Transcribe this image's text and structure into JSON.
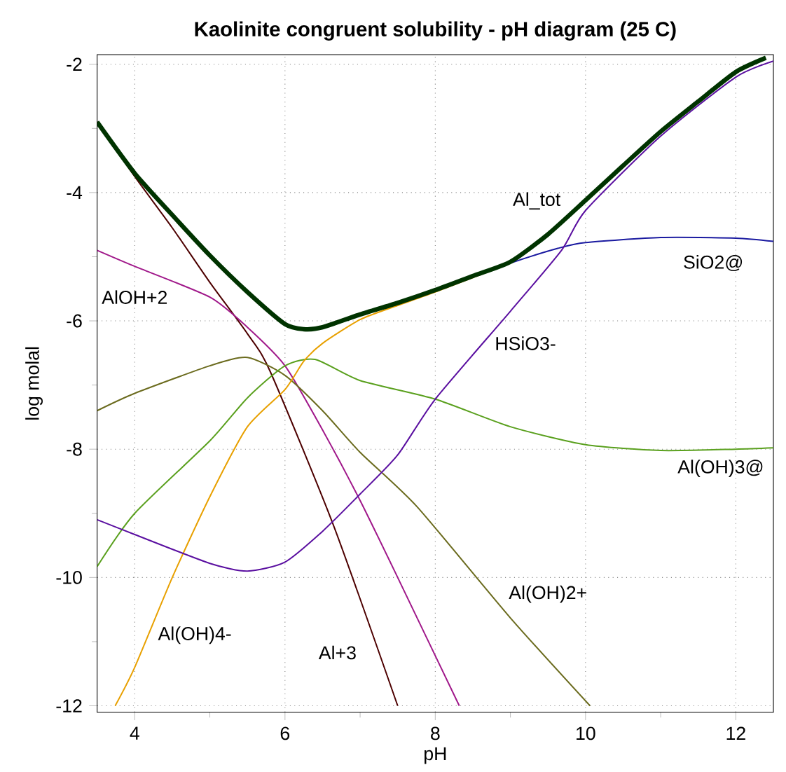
{
  "chart_data": {
    "type": "line",
    "title": "Kaolinite congruent solubility - pH diagram (25 C)",
    "xlabel": "pH",
    "ylabel": "log molal",
    "xlim": [
      3.5,
      12.5
    ],
    "xticks": [
      4,
      6,
      8,
      10,
      12
    ],
    "ylim": [
      -12.1,
      -1.85
    ],
    "yticks": [
      -12,
      -10,
      -8,
      -6,
      -4,
      -2
    ],
    "grid": true,
    "legend": false,
    "marker": "none",
    "line_style": "solid",
    "series": [
      {
        "name": "Al_tot",
        "color": "#003300",
        "x": [
          3.5,
          4,
          4.5,
          5,
          5.5,
          6,
          6.25,
          6.5,
          7,
          7.5,
          8,
          8.5,
          9,
          9.5,
          10,
          10.5,
          11,
          11.5,
          12,
          12.4
        ],
        "values": [
          -2.9,
          -3.7,
          -4.35,
          -4.98,
          -5.55,
          -6.05,
          -6.13,
          -6.1,
          -5.9,
          -5.72,
          -5.52,
          -5.3,
          -5.08,
          -4.65,
          -4.12,
          -3.58,
          -3.05,
          -2.58,
          -2.12,
          -1.9
        ]
      },
      {
        "name": "Al+3",
        "color": "#4d0000",
        "x": [
          3.5,
          4,
          4.5,
          5,
          5.5,
          5.8,
          6.64,
          7.5
        ],
        "values": [
          -2.9,
          -3.75,
          -4.55,
          -5.4,
          -6.2,
          -6.78,
          -9.17,
          -12
        ]
      },
      {
        "name": "AlOH+2",
        "color": "#a0188a",
        "x": [
          3.5,
          4,
          5,
          5.5,
          6,
          6.5,
          7,
          7.5,
          8.32
        ],
        "values": [
          -4.9,
          -5.15,
          -5.63,
          -6.1,
          -6.7,
          -7.7,
          -8.8,
          -10.0,
          -12
        ]
      },
      {
        "name": "Al(OH)2+",
        "color": "#6b6b1e",
        "x": [
          3.5,
          4,
          5,
          5.5,
          6,
          6.5,
          7,
          7.76,
          9,
          10.06
        ],
        "values": [
          -7.4,
          -7.13,
          -6.7,
          -6.57,
          -6.85,
          -7.4,
          -8.05,
          -8.9,
          -10.63,
          -12
        ]
      },
      {
        "name": "Al(OH)3@",
        "color": "#5aa01e",
        "x": [
          3.5,
          4,
          5,
          5.5,
          6,
          6.4,
          7,
          8,
          9,
          10,
          11,
          12,
          12.5
        ],
        "values": [
          -9.83,
          -9.0,
          -7.87,
          -7.2,
          -6.7,
          -6.6,
          -6.93,
          -7.22,
          -7.65,
          -7.93,
          -8.02,
          -8.0,
          -7.98
        ]
      },
      {
        "name": "Al(OH)4-",
        "color": "#e8a000",
        "x": [
          3.74,
          4,
          4.5,
          5,
          5.5,
          6,
          6.25,
          6.5,
          7,
          7.5,
          8,
          9
        ],
        "values": [
          -12,
          -11.4,
          -10.0,
          -8.74,
          -7.65,
          -7.07,
          -6.63,
          -6.35,
          -5.98,
          -5.76,
          -5.55,
          -5.1
        ]
      },
      {
        "name": "SiO2@",
        "color": "#1a1aa0",
        "x": [
          8.5,
          9,
          9.63,
          10,
          11,
          12,
          12.5
        ],
        "values": [
          -5.32,
          -5.1,
          -4.87,
          -4.78,
          -4.7,
          -4.71,
          -4.76
        ]
      },
      {
        "name": "HSiO3-",
        "color": "#5a0fa0",
        "x": [
          3.5,
          4,
          5,
          5.5,
          6,
          6.5,
          7,
          7.5,
          8,
          9,
          9.68,
          10,
          11,
          12,
          12.5
        ],
        "values": [
          -9.1,
          -9.33,
          -9.78,
          -9.9,
          -9.76,
          -9.28,
          -8.7,
          -8.09,
          -7.22,
          -5.85,
          -4.9,
          -4.28,
          -3.12,
          -2.2,
          -1.95
        ]
      }
    ]
  }
}
